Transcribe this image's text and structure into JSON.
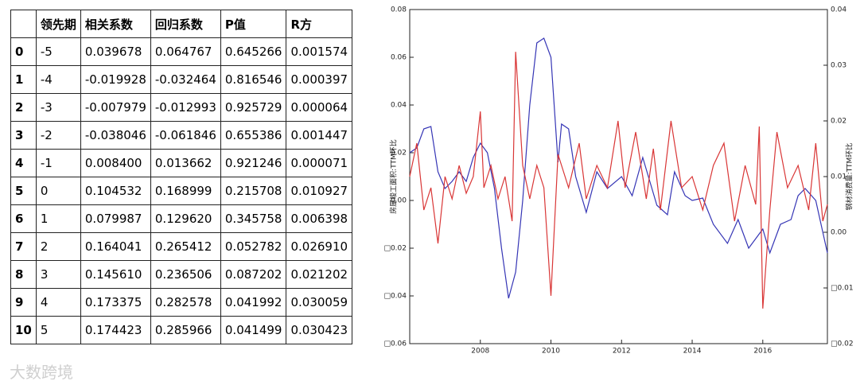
{
  "table": {
    "columns": [
      "领先期",
      "相关系数",
      "回归系数",
      "P值",
      "R方"
    ],
    "rows": [
      [
        "0",
        "-5",
        "0.039678",
        "0.064767",
        "0.645266",
        "0.001574"
      ],
      [
        "1",
        "-4",
        "-0.019928",
        "-0.032464",
        "0.816546",
        "0.000397"
      ],
      [
        "2",
        "-3",
        "-0.007979",
        "-0.012993",
        "0.925729",
        "0.000064"
      ],
      [
        "3",
        "-2",
        "-0.038046",
        "-0.061846",
        "0.655386",
        "0.001447"
      ],
      [
        "4",
        "-1",
        "0.008400",
        "0.013662",
        "0.921246",
        "0.000071"
      ],
      [
        "5",
        "0",
        "0.104532",
        "0.168999",
        "0.215708",
        "0.010927"
      ],
      [
        "6",
        "1",
        "0.079987",
        "0.129620",
        "0.345758",
        "0.006398"
      ],
      [
        "7",
        "2",
        "0.164041",
        "0.265412",
        "0.052782",
        "0.026910"
      ],
      [
        "8",
        "3",
        "0.145610",
        "0.236506",
        "0.087202",
        "0.021202"
      ],
      [
        "9",
        "4",
        "0.173375",
        "0.282578",
        "0.041992",
        "0.030059"
      ],
      [
        "10",
        "5",
        "0.174423",
        "0.285966",
        "0.041499",
        "0.030423"
      ]
    ]
  },
  "watermark": "大数跨境",
  "chart_data": {
    "type": "line",
    "ylabel": "房屋竣工面积:TTM环比",
    "y2label": "钢材消费量:TTM环比",
    "xlim": [
      2006.0,
      2017.83
    ],
    "xticks": [
      2008,
      2010,
      2012,
      2014,
      2016
    ],
    "ylim": [
      -0.06,
      0.08
    ],
    "yticks": [
      {
        "value": -0.06,
        "label": "□0.06"
      },
      {
        "value": -0.04,
        "label": "□0.04"
      },
      {
        "value": -0.02,
        "label": "□0.02"
      },
      {
        "value": 0,
        "label": "0.00"
      },
      0.02,
      0.04,
      0.06,
      0.08
    ],
    "y2lim": [
      -0.02,
      0.04
    ],
    "y2ticks": [
      {
        "value": -0.02,
        "label": "□0.02"
      },
      {
        "value": -0.01,
        "label": "□0.01"
      },
      {
        "value": 0,
        "label": "0.00"
      },
      0.01,
      0.02,
      0.03,
      0.04
    ],
    "series": [
      {
        "name": "房屋竣工面积:TTM环比",
        "color": "#3535b5",
        "axis": "y",
        "x": [
          2006.0,
          2006.2,
          2006.4,
          2006.6,
          2006.8,
          2007.0,
          2007.2,
          2007.4,
          2007.6,
          2007.8,
          2008.0,
          2008.2,
          2008.4,
          2008.6,
          2008.8,
          2009.0,
          2009.2,
          2009.4,
          2009.6,
          2009.8,
          2010.0,
          2010.2,
          2010.3,
          2010.5,
          2010.7,
          2011.0,
          2011.3,
          2011.6,
          2012.0,
          2012.3,
          2012.6,
          2012.8,
          2013.0,
          2013.3,
          2013.5,
          2013.8,
          2014.0,
          2014.3,
          2014.6,
          2015.0,
          2015.3,
          2015.6,
          2016.0,
          2016.2,
          2016.5,
          2016.8,
          2017.0,
          2017.2,
          2017.5,
          2017.83
        ],
        "values": [
          0.02,
          0.022,
          0.03,
          0.031,
          0.012,
          0.005,
          0.008,
          0.012,
          0.008,
          0.018,
          0.024,
          0.02,
          0.005,
          -0.02,
          -0.041,
          -0.03,
          0.0,
          0.04,
          0.066,
          0.068,
          0.06,
          0.016,
          0.032,
          0.03,
          0.01,
          -0.005,
          0.012,
          0.005,
          0.01,
          0.002,
          0.018,
          0.008,
          -0.002,
          -0.006,
          0.012,
          0.002,
          0.0,
          0.001,
          -0.01,
          -0.018,
          -0.008,
          -0.02,
          -0.012,
          -0.022,
          -0.01,
          -0.008,
          0.002,
          0.005,
          0.0,
          -0.022
        ]
      },
      {
        "name": "钢材消费量:TTM环比",
        "color": "#d93636",
        "axis": "y2",
        "x": [
          2006.0,
          2006.2,
          2006.4,
          2006.6,
          2006.8,
          2007.0,
          2007.2,
          2007.4,
          2007.6,
          2007.8,
          2008.0,
          2008.1,
          2008.3,
          2008.5,
          2008.7,
          2008.9,
          2009.0,
          2009.2,
          2009.4,
          2009.6,
          2009.8,
          2010.0,
          2010.2,
          2010.5,
          2010.8,
          2011.0,
          2011.3,
          2011.6,
          2011.9,
          2012.1,
          2012.4,
          2012.7,
          2012.9,
          2013.1,
          2013.4,
          2013.7,
          2014.0,
          2014.3,
          2014.6,
          2014.9,
          2015.2,
          2015.5,
          2015.8,
          2015.9,
          2016.0,
          2016.2,
          2016.4,
          2016.7,
          2017.0,
          2017.3,
          2017.5,
          2017.7,
          2017.83
        ],
        "values": [
          0.01,
          0.016,
          0.004,
          0.008,
          -0.002,
          0.01,
          0.006,
          0.012,
          0.007,
          0.01,
          0.0217,
          0.008,
          0.012,
          0.006,
          0.01,
          0.002,
          0.0324,
          0.012,
          0.006,
          0.012,
          0.008,
          -0.0114,
          0.014,
          0.008,
          0.016,
          0.006,
          0.012,
          0.008,
          0.02,
          0.008,
          0.018,
          0.006,
          0.015,
          0.004,
          0.02,
          0.008,
          0.01,
          0.004,
          0.012,
          0.016,
          0.002,
          0.012,
          0.005,
          0.019,
          -0.0137,
          0.004,
          0.018,
          0.008,
          0.012,
          0.004,
          0.016,
          0.002,
          0.005
        ]
      }
    ]
  }
}
